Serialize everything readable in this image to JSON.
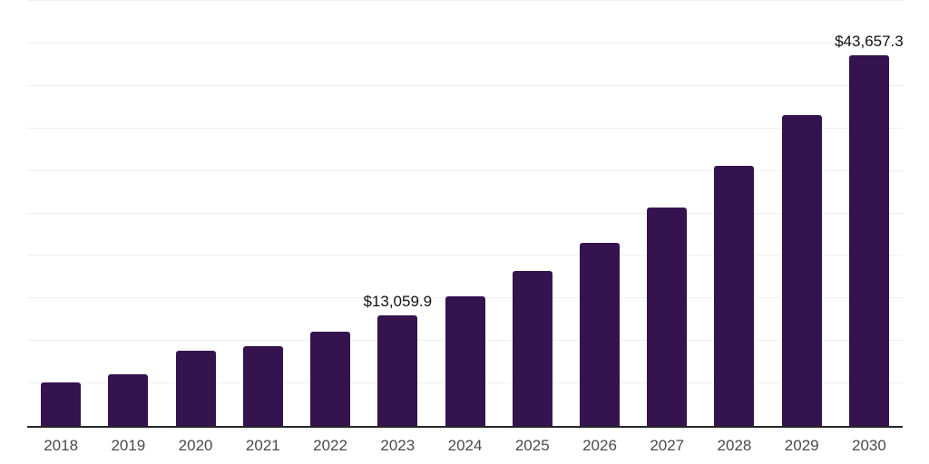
{
  "chart_data": {
    "type": "bar",
    "title": "",
    "xlabel": "",
    "ylabel": "",
    "categories": [
      "2018",
      "2019",
      "2020",
      "2021",
      "2022",
      "2023",
      "2024",
      "2025",
      "2026",
      "2027",
      "2028",
      "2029",
      "2030"
    ],
    "values": [
      5170,
      6110,
      8900,
      9380,
      11140,
      13059.9,
      15245,
      18230,
      21535,
      25690,
      30600,
      36570,
      43657.3
    ],
    "data_labels": {
      "2023": "$13,059.9",
      "2030": "$43,657.3"
    },
    "ylim": [
      0,
      50000
    ],
    "gridline_step": 5000,
    "grid": true,
    "legend": false,
    "colors": {
      "bar": "#35134e",
      "gridline": "#efefef",
      "axis": "#262626",
      "tick_label": "#4a4a4a",
      "value_label": "#111111",
      "background": "#ffffff"
    }
  }
}
